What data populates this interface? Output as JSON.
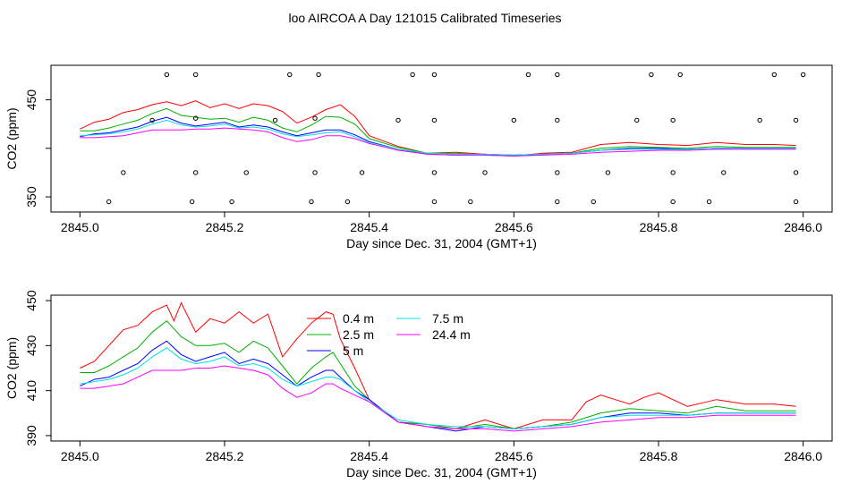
{
  "figure": {
    "title": "loo AIRCOA A  Day 121015  Calibrated Timeseries"
  },
  "colors": {
    "0.4 m": "#ff0000",
    "2.5 m": "#00b000",
    "5 m": "#0000ff",
    "7.5 m": "#00e0e0",
    "24.4 m": "#ff00ff"
  },
  "chart_data": [
    {
      "type": "line",
      "xlabel": "Day since Dec. 31, 2004 (GMT+1)",
      "ylabel": "CO2 (ppm)",
      "xlim": [
        2845.0,
        2846.0
      ],
      "ylim": [
        340,
        480
      ],
      "xticks": [
        2845.0,
        2845.2,
        2845.4,
        2845.6,
        2845.8,
        2846.0
      ],
      "xtick_labels": [
        "2845.0",
        "2845.2",
        "2845.4",
        "2845.6",
        "2845.8",
        "2846.0"
      ],
      "yticks": [
        350,
        400,
        450
      ],
      "ytick_labels": [
        "350",
        "",
        "450"
      ],
      "grid": false,
      "series": [
        {
          "name": "0.4 m",
          "x": [
            2845.0,
            2845.02,
            2845.04,
            2845.06,
            2845.08,
            2845.1,
            2845.12,
            2845.14,
            2845.16,
            2845.18,
            2845.2,
            2845.22,
            2845.24,
            2845.26,
            2845.28,
            2845.3,
            2845.32,
            2845.34,
            2845.36,
            2845.38,
            2845.4,
            2845.44,
            2845.48,
            2845.52,
            2845.56,
            2845.6,
            2845.64,
            2845.68,
            2845.72,
            2845.76,
            2845.8,
            2845.84,
            2845.88,
            2845.92,
            2845.96,
            2845.99
          ],
          "y": [
            420,
            427,
            430,
            437,
            440,
            445,
            448,
            444,
            449,
            442,
            446,
            441,
            446,
            444,
            438,
            426,
            432,
            440,
            445,
            433,
            413,
            402,
            395,
            396,
            394,
            392,
            395,
            396,
            404,
            406,
            404,
            403,
            406,
            404,
            404,
            403
          ]
        },
        {
          "name": "2.5 m",
          "x": [
            2845.0,
            2845.02,
            2845.04,
            2845.06,
            2845.08,
            2845.1,
            2845.12,
            2845.14,
            2845.16,
            2845.18,
            2845.2,
            2845.22,
            2845.24,
            2845.26,
            2845.28,
            2845.3,
            2845.32,
            2845.34,
            2845.36,
            2845.38,
            2845.4,
            2845.44,
            2845.48,
            2845.52,
            2845.56,
            2845.6,
            2845.64,
            2845.68,
            2845.72,
            2845.76,
            2845.8,
            2845.84,
            2845.88,
            2845.92,
            2845.96,
            2845.99
          ],
          "y": [
            418,
            418,
            421,
            425,
            429,
            436,
            441,
            434,
            432,
            430,
            431,
            427,
            432,
            429,
            421,
            417,
            424,
            433,
            432,
            425,
            410,
            401,
            395,
            395,
            393,
            392,
            394,
            395,
            400,
            402,
            401,
            400,
            402,
            401,
            401,
            401
          ]
        },
        {
          "name": "5 m",
          "x": [
            2845.0,
            2845.02,
            2845.04,
            2845.06,
            2845.08,
            2845.1,
            2845.12,
            2845.14,
            2845.16,
            2845.18,
            2845.2,
            2845.22,
            2845.24,
            2845.26,
            2845.28,
            2845.3,
            2845.32,
            2845.34,
            2845.36,
            2845.38,
            2845.4,
            2845.44,
            2845.48,
            2845.52,
            2845.56,
            2845.6,
            2845.64,
            2845.68,
            2845.72,
            2845.76,
            2845.8,
            2845.84,
            2845.88,
            2845.92,
            2845.96,
            2845.99
          ],
          "y": [
            412,
            415,
            416,
            419,
            422,
            428,
            432,
            426,
            423,
            425,
            427,
            422,
            424,
            422,
            417,
            413,
            416,
            419,
            419,
            414,
            407,
            399,
            394,
            393,
            394,
            393,
            394,
            395,
            398,
            400,
            400,
            399,
            400,
            400,
            400,
            400
          ]
        },
        {
          "name": "7.5 m",
          "x": [
            2845.0,
            2845.02,
            2845.04,
            2845.06,
            2845.08,
            2845.1,
            2845.12,
            2845.14,
            2845.16,
            2845.18,
            2845.2,
            2845.22,
            2845.24,
            2845.26,
            2845.28,
            2845.3,
            2845.32,
            2845.34,
            2845.36,
            2845.38,
            2845.4,
            2845.44,
            2845.48,
            2845.52,
            2845.56,
            2845.6,
            2845.64,
            2845.68,
            2845.72,
            2845.76,
            2845.8,
            2845.84,
            2845.88,
            2845.92,
            2845.96,
            2845.99
          ],
          "y": [
            413,
            414,
            415,
            417,
            420,
            425,
            429,
            424,
            422,
            423,
            425,
            421,
            422,
            420,
            415,
            412,
            414,
            416,
            417,
            412,
            406,
            399,
            395,
            394,
            394,
            393,
            394,
            395,
            398,
            399,
            399,
            399,
            400,
            400,
            400,
            400
          ]
        },
        {
          "name": "24.4 m",
          "x": [
            2845.0,
            2845.02,
            2845.04,
            2845.06,
            2845.08,
            2845.1,
            2845.12,
            2845.14,
            2845.16,
            2845.18,
            2845.2,
            2845.22,
            2845.24,
            2845.26,
            2845.28,
            2845.3,
            2845.32,
            2845.34,
            2845.36,
            2845.38,
            2845.4,
            2845.44,
            2845.48,
            2845.52,
            2845.56,
            2845.6,
            2845.64,
            2845.68,
            2845.72,
            2845.76,
            2845.8,
            2845.84,
            2845.88,
            2845.92,
            2845.96,
            2845.99
          ],
          "y": [
            411,
            411,
            412,
            413,
            416,
            419,
            419,
            419,
            420,
            420,
            421,
            420,
            419,
            417,
            411,
            407,
            409,
            413,
            413,
            410,
            405,
            398,
            394,
            393,
            393,
            392,
            393,
            394,
            396,
            397,
            398,
            398,
            399,
            399,
            399,
            399
          ]
        }
      ],
      "markers": {
        "x": [
          2845.04,
          2845.06,
          2845.1,
          2845.12,
          2845.155,
          2845.16,
          2845.16,
          2845.16,
          2845.21,
          2845.23,
          2845.27,
          2845.29,
          2845.32,
          2845.325,
          2845.325,
          2845.33,
          2845.37,
          2845.39,
          2845.44,
          2845.46,
          2845.49,
          2845.49,
          2845.49,
          2845.49,
          2845.54,
          2845.56,
          2845.6,
          2845.62,
          2845.66,
          2845.66,
          2845.66,
          2845.66,
          2845.71,
          2845.73,
          2845.77,
          2845.79,
          2845.82,
          2845.82,
          2845.82,
          2845.83,
          2845.87,
          2845.89,
          2845.94,
          2845.96,
          2845.99,
          2845.99,
          2845.99,
          2846.0
        ],
        "y": [
          345,
          375,
          429,
          476,
          345,
          375,
          431,
          476,
          345,
          375,
          429,
          476,
          345,
          375,
          431,
          476,
          345,
          375,
          429,
          476,
          345,
          375,
          429,
          476,
          345,
          375,
          429,
          476,
          345,
          375,
          429,
          476,
          345,
          375,
          429,
          476,
          345,
          375,
          429,
          476,
          345,
          375,
          429,
          476,
          345,
          375,
          429,
          476
        ]
      }
    },
    {
      "type": "line",
      "xlabel": "Day since Dec. 31, 2004 (GMT+1)",
      "ylabel": "CO2 (ppm)",
      "xlim": [
        2845.0,
        2846.0
      ],
      "ylim": [
        390,
        450
      ],
      "xticks": [
        2845.0,
        2845.2,
        2845.4,
        2845.6,
        2845.8,
        2846.0
      ],
      "xtick_labels": [
        "2845.0",
        "2845.2",
        "2845.4",
        "2845.6",
        "2845.8",
        "2846.0"
      ],
      "yticks": [
        390,
        410,
        430,
        450
      ],
      "ytick_labels": [
        "390",
        "410",
        "430",
        "450"
      ],
      "grid": false,
      "legend": "top-center",
      "series": [
        {
          "name": "0.4 m",
          "x": [
            2845.0,
            2845.02,
            2845.04,
            2845.06,
            2845.08,
            2845.1,
            2845.12,
            2845.13,
            2845.14,
            2845.16,
            2845.18,
            2845.2,
            2845.22,
            2845.24,
            2845.26,
            2845.28,
            2845.3,
            2845.32,
            2845.34,
            2845.35,
            2845.36,
            2845.38,
            2845.4,
            2845.44,
            2845.48,
            2845.52,
            2845.56,
            2845.6,
            2845.64,
            2845.68,
            2845.7,
            2845.72,
            2845.74,
            2845.76,
            2845.78,
            2845.8,
            2845.84,
            2845.88,
            2845.92,
            2845.96,
            2845.99
          ],
          "y": [
            420,
            423,
            430,
            437,
            439,
            445,
            448,
            441,
            449,
            436,
            442,
            440,
            445,
            440,
            444,
            425,
            433,
            440,
            445,
            444,
            433,
            420,
            406,
            396,
            395,
            393,
            397,
            393,
            397,
            397,
            405,
            408,
            406,
            404,
            407,
            409,
            403,
            406,
            404,
            404,
            403
          ]
        },
        {
          "name": "2.5 m",
          "x": [
            2845.0,
            2845.02,
            2845.04,
            2845.06,
            2845.08,
            2845.1,
            2845.12,
            2845.14,
            2845.16,
            2845.18,
            2845.2,
            2845.22,
            2845.24,
            2845.26,
            2845.28,
            2845.3,
            2845.32,
            2845.34,
            2845.35,
            2845.36,
            2845.38,
            2845.4,
            2845.44,
            2845.48,
            2845.52,
            2845.56,
            2845.6,
            2845.64,
            2845.68,
            2845.72,
            2845.76,
            2845.8,
            2845.84,
            2845.88,
            2845.92,
            2845.96,
            2845.99
          ],
          "y": [
            418,
            418,
            421,
            425,
            429,
            436,
            441,
            434,
            430,
            430,
            431,
            427,
            432,
            429,
            421,
            413,
            420,
            425,
            427,
            422,
            412,
            406,
            396,
            395,
            393,
            395,
            393,
            394,
            396,
            400,
            402,
            401,
            400,
            403,
            401,
            401,
            401
          ]
        },
        {
          "name": "5 m",
          "x": [
            2845.0,
            2845.02,
            2845.04,
            2845.06,
            2845.08,
            2845.1,
            2845.12,
            2845.14,
            2845.16,
            2845.18,
            2845.2,
            2845.22,
            2845.24,
            2845.26,
            2845.28,
            2845.3,
            2845.32,
            2845.34,
            2845.35,
            2845.36,
            2845.38,
            2845.4,
            2845.44,
            2845.48,
            2845.52,
            2845.56,
            2845.6,
            2845.64,
            2845.68,
            2845.72,
            2845.76,
            2845.8,
            2845.84,
            2845.88,
            2845.92,
            2845.96,
            2845.99
          ],
          "y": [
            412,
            415,
            416,
            419,
            422,
            428,
            432,
            426,
            423,
            425,
            427,
            422,
            424,
            422,
            417,
            412,
            416,
            419,
            419,
            416,
            410,
            406,
            396,
            394,
            392,
            394,
            393,
            394,
            395,
            398,
            400,
            400,
            399,
            400,
            400,
            400,
            400
          ]
        },
        {
          "name": "7.5 m",
          "x": [
            2845.0,
            2845.02,
            2845.04,
            2845.06,
            2845.08,
            2845.1,
            2845.12,
            2845.14,
            2845.16,
            2845.18,
            2845.2,
            2845.22,
            2845.24,
            2845.26,
            2845.28,
            2845.3,
            2845.32,
            2845.34,
            2845.35,
            2845.36,
            2845.38,
            2845.4,
            2845.44,
            2845.48,
            2845.52,
            2845.56,
            2845.6,
            2845.64,
            2845.68,
            2845.72,
            2845.76,
            2845.8,
            2845.84,
            2845.88,
            2845.92,
            2845.96,
            2845.99
          ],
          "y": [
            413,
            414,
            415,
            417,
            420,
            425,
            429,
            424,
            422,
            423,
            425,
            421,
            422,
            420,
            415,
            412,
            414,
            416,
            416,
            415,
            410,
            405,
            397,
            395,
            394,
            394,
            393,
            394,
            395,
            398,
            399,
            399,
            399,
            400,
            400,
            400,
            400
          ]
        },
        {
          "name": "24.4 m",
          "x": [
            2845.0,
            2845.02,
            2845.04,
            2845.06,
            2845.08,
            2845.1,
            2845.12,
            2845.14,
            2845.16,
            2845.18,
            2845.2,
            2845.22,
            2845.24,
            2845.26,
            2845.28,
            2845.3,
            2845.32,
            2845.34,
            2845.35,
            2845.36,
            2845.38,
            2845.4,
            2845.44,
            2845.48,
            2845.52,
            2845.56,
            2845.6,
            2845.64,
            2845.68,
            2845.72,
            2845.76,
            2845.8,
            2845.84,
            2845.88,
            2845.92,
            2845.96,
            2845.99
          ],
          "y": [
            411,
            411,
            412,
            413,
            416,
            419,
            419,
            419,
            420,
            420,
            421,
            420,
            419,
            417,
            411,
            407,
            409,
            413,
            413,
            411,
            408,
            405,
            396,
            394,
            393,
            393,
            392,
            393,
            394,
            396,
            397,
            398,
            398,
            399,
            399,
            399,
            399
          ]
        }
      ]
    }
  ]
}
